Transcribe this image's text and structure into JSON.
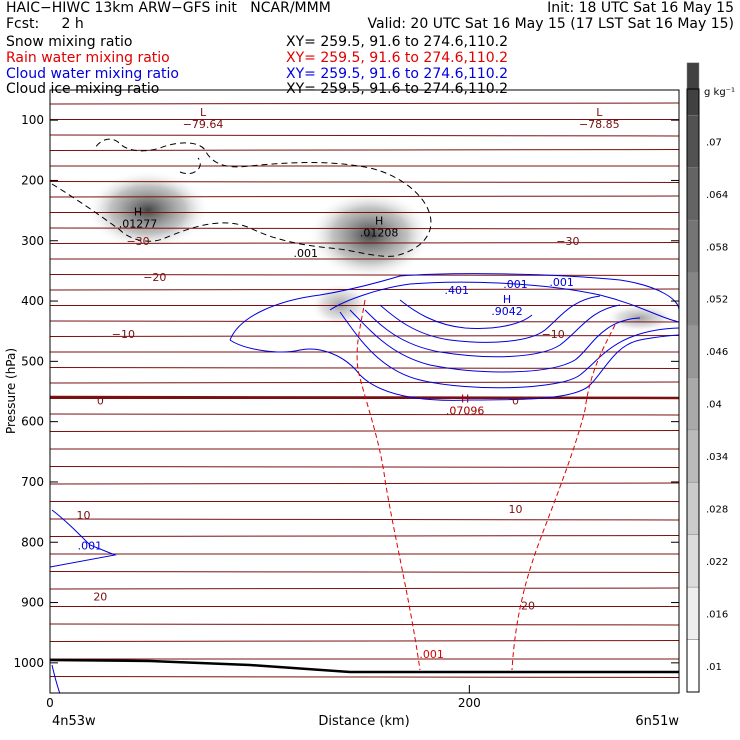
{
  "header": {
    "line1_left": "HAIC−HIWC 13km ARW−GFS init   NCAR/MMM",
    "line1_right": "Init: 18 UTC Sat 16 May 15",
    "line2_left": "Fcst:     2 h",
    "line2_right": "Valid: 20 UTC Sat 16 May 15 (17 LST Sat 16 May 15)",
    "fields": [
      {
        "name": "Snow mixing ratio",
        "xy": "XY= 259.5, 91.6 to 274.6,110.2",
        "color": "#000000"
      },
      {
        "name": "Rain water mixing ratio",
        "xy": "XY= 259.5, 91.6 to 274.6,110.2",
        "color": "#e00000"
      },
      {
        "name": "Cloud water mixing ratio",
        "xy": "XY= 259.5, 91.6 to 274.6,110.2",
        "color": "#0000e0"
      },
      {
        "name": "Cloud ice mixing ratio",
        "xy": "XY= 259.5, 91.6 to 274.6,110.2",
        "color": "#000000"
      }
    ]
  },
  "chart_data": {
    "type": "cross-section",
    "ylabel": "Pressure (hPa)",
    "xlabel": "Distance (km)",
    "x_ticks": [
      0,
      200
    ],
    "x_end_labels": {
      "left": "4n53w",
      "right": "6n51w"
    },
    "y_ticks": [
      100,
      200,
      300,
      400,
      500,
      600,
      700,
      800,
      900,
      1000
    ],
    "x_range_km": [
      0,
      300
    ],
    "y_range_hpa": [
      50,
      1050
    ],
    "colorbar": {
      "unit": "g kg⁻¹",
      "ticks": [
        ".01",
        ".016",
        ".022",
        ".028",
        ".034",
        ".04",
        ".046",
        ".052",
        ".058",
        ".064",
        ".07"
      ]
    },
    "temperature_labels": [
      {
        "text": "−30",
        "x": 42,
        "p": 300
      },
      {
        "text": "−30",
        "x": 247,
        "p": 300
      },
      {
        "text": "−20",
        "x": 50,
        "p": 360
      },
      {
        "text": "−10",
        "x": 35,
        "p": 455
      },
      {
        "text": "−10",
        "x": 240,
        "p": 455
      },
      {
        "text": "0",
        "x": 24,
        "p": 565
      },
      {
        "text": "0",
        "x": 222,
        "p": 565
      },
      {
        "text": "10",
        "x": 16,
        "p": 755
      },
      {
        "text": "10",
        "x": 222,
        "p": 745
      },
      {
        "text": "20",
        "x": 24,
        "p": 890
      },
      {
        "text": "20",
        "x": 228,
        "p": 905
      }
    ],
    "lows": [
      {
        "text": "L",
        "value": "−79.64",
        "x": 73,
        "p": 100
      },
      {
        "text": "L",
        "value": "−78.85",
        "x": 262,
        "p": 100
      }
    ],
    "highs": [
      {
        "value": ".01277",
        "x": 42,
        "p": 265,
        "color": "#000000"
      },
      {
        "value": ".01208",
        "x": 157,
        "p": 280,
        "color": "#000000"
      },
      {
        "value": ".9042",
        "x": 218,
        "p": 410,
        "color": "#0000e0"
      },
      {
        "value": ".07096",
        "x": 198,
        "p": 575,
        "color": "#a00000"
      }
    ],
    "field_labels": [
      {
        "text": ".001",
        "x": 122,
        "p": 320,
        "color": "#000000"
      },
      {
        "text": ".401",
        "x": 194,
        "p": 382,
        "color": "#0000e0"
      },
      {
        "text": ".001",
        "x": 222,
        "p": 372,
        "color": "#0000e0"
      },
      {
        "text": ".001",
        "x": 244,
        "p": 368,
        "color": "#0000e0"
      },
      {
        "text": ".001",
        "x": 19,
        "p": 805,
        "color": "#0000e0"
      },
      {
        "text": ".001",
        "x": 182,
        "p": 985,
        "color": "#e00000"
      }
    ]
  }
}
